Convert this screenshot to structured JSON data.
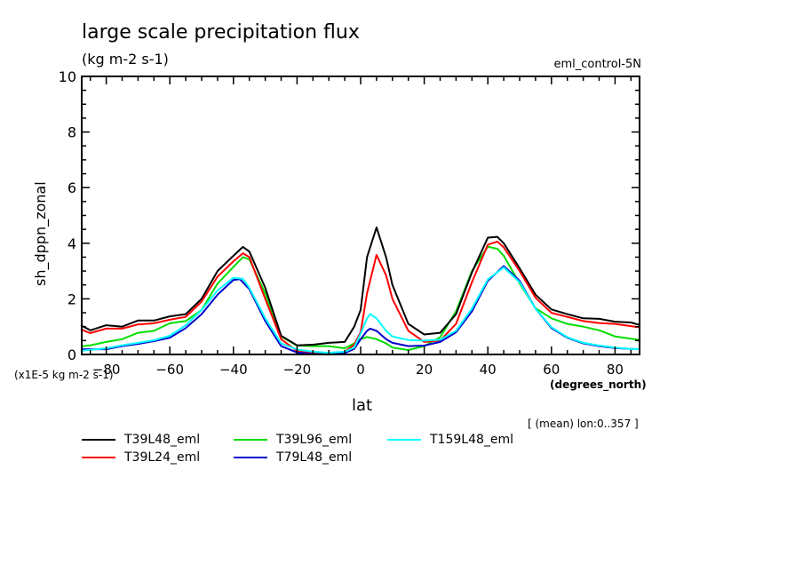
{
  "chart_data": {
    "type": "line",
    "title": "large scale precipitation flux",
    "subtitle": "(kg m-2 s-1)",
    "run_label": "eml_control-5N",
    "xlabel": "lat",
    "xunits": "(degrees_north)",
    "ylabel": "sh_dppn_zonal",
    "yscale_note": "(x1E-5 kg m-2 s-1)",
    "annotation": "[ (mean) lon:0..357 ]",
    "xlim": [
      -88,
      88
    ],
    "ylim": [
      0,
      10
    ],
    "xticks": [
      -80,
      -60,
      -40,
      -20,
      0,
      20,
      40,
      60,
      80
    ],
    "xtick_labels": [
      "-80",
      "-60",
      "-40",
      "-20",
      "0",
      "20",
      "40",
      "60",
      "80"
    ],
    "yticks": [
      0,
      2,
      4,
      6,
      8,
      10
    ],
    "ytick_labels": [
      "0",
      "2",
      "4",
      "6",
      "8",
      "10"
    ],
    "grid": false,
    "legend_position": "bottom",
    "series": [
      {
        "name": "T39L48_eml",
        "color": "#000000",
        "x": [
          -88,
          -85,
          -80,
          -75,
          -70,
          -65,
          -60,
          -55,
          -50,
          -45,
          -40,
          -37,
          -35,
          -30,
          -25,
          -20,
          -15,
          -10,
          -5,
          -2,
          0,
          2,
          5,
          8,
          10,
          15,
          20,
          25,
          30,
          35,
          40,
          43,
          45,
          50,
          55,
          60,
          65,
          70,
          75,
          80,
          85,
          88
        ],
        "y": [
          1.05,
          0.87,
          1.05,
          1.0,
          1.22,
          1.22,
          1.37,
          1.45,
          2.0,
          3.0,
          3.55,
          3.87,
          3.7,
          2.4,
          0.67,
          0.33,
          0.35,
          0.42,
          0.45,
          1.0,
          1.6,
          3.5,
          4.57,
          3.5,
          2.5,
          1.1,
          0.72,
          0.78,
          1.45,
          2.95,
          4.2,
          4.23,
          4.0,
          3.1,
          2.15,
          1.62,
          1.45,
          1.3,
          1.28,
          1.18,
          1.15,
          1.05
        ]
      },
      {
        "name": "T39L24_eml",
        "color": "#ff0000",
        "x": [
          -88,
          -85,
          -80,
          -75,
          -70,
          -65,
          -60,
          -55,
          -50,
          -45,
          -40,
          -37,
          -35,
          -30,
          -25,
          -20,
          -15,
          -10,
          -5,
          -2,
          0,
          2,
          5,
          8,
          10,
          15,
          20,
          25,
          30,
          35,
          40,
          43,
          45,
          50,
          55,
          60,
          65,
          70,
          75,
          80,
          85,
          88
        ],
        "y": [
          0.9,
          0.77,
          0.93,
          0.93,
          1.08,
          1.12,
          1.25,
          1.35,
          1.9,
          2.8,
          3.35,
          3.64,
          3.5,
          2.0,
          0.55,
          0.12,
          0.05,
          0.02,
          0.1,
          0.35,
          0.8,
          2.2,
          3.58,
          2.85,
          2.0,
          0.85,
          0.45,
          0.5,
          1.1,
          2.6,
          3.95,
          4.06,
          3.85,
          3.0,
          2.04,
          1.5,
          1.35,
          1.2,
          1.13,
          1.1,
          1.02,
          0.97
        ]
      },
      {
        "name": "T39L96_eml",
        "color": "#00dd00",
        "x": [
          -88,
          -85,
          -80,
          -75,
          -70,
          -65,
          -60,
          -55,
          -50,
          -45,
          -40,
          -37,
          -35,
          -30,
          -25,
          -20,
          -15,
          -10,
          -5,
          -2,
          0,
          2,
          5,
          8,
          10,
          15,
          20,
          25,
          30,
          35,
          40,
          43,
          45,
          50,
          55,
          60,
          65,
          70,
          75,
          80,
          85,
          88
        ],
        "y": [
          0.29,
          0.33,
          0.45,
          0.55,
          0.78,
          0.85,
          1.12,
          1.2,
          1.6,
          2.55,
          3.15,
          3.5,
          3.42,
          2.2,
          0.65,
          0.32,
          0.3,
          0.3,
          0.22,
          0.4,
          0.55,
          0.63,
          0.55,
          0.4,
          0.25,
          0.16,
          0.3,
          0.62,
          1.55,
          3.0,
          3.88,
          3.8,
          3.55,
          2.55,
          1.66,
          1.3,
          1.1,
          1.0,
          0.87,
          0.65,
          0.57,
          0.52
        ]
      },
      {
        "name": "T79L48_eml",
        "color": "#0000cc",
        "x": [
          -88,
          -85,
          -80,
          -75,
          -70,
          -65,
          -60,
          -55,
          -50,
          -45,
          -40,
          -38,
          -35,
          -30,
          -25,
          -20,
          -15,
          -10,
          -5,
          -2,
          0,
          2,
          3,
          5,
          8,
          10,
          15,
          20,
          25,
          30,
          35,
          40,
          45,
          50,
          55,
          60,
          65,
          70,
          75,
          80,
          85,
          88
        ],
        "y": [
          0.19,
          0.19,
          0.19,
          0.3,
          0.38,
          0.48,
          0.6,
          0.95,
          1.45,
          2.15,
          2.68,
          2.71,
          2.35,
          1.2,
          0.3,
          0.07,
          0.02,
          0.0,
          0.05,
          0.2,
          0.55,
          0.85,
          0.93,
          0.85,
          0.55,
          0.42,
          0.3,
          0.32,
          0.45,
          0.8,
          1.55,
          2.65,
          3.18,
          2.65,
          1.65,
          0.95,
          0.6,
          0.4,
          0.3,
          0.23,
          0.2,
          0.19
        ]
      },
      {
        "name": "T159L48_eml",
        "color": "#00ffff",
        "x": [
          -88,
          -85,
          -80,
          -75,
          -70,
          -65,
          -60,
          -55,
          -50,
          -45,
          -40,
          -37,
          -35,
          -30,
          -25,
          -20,
          -15,
          -10,
          -5,
          -2,
          0,
          2,
          3,
          5,
          8,
          10,
          15,
          20,
          25,
          30,
          35,
          40,
          45,
          50,
          55,
          60,
          65,
          70,
          75,
          80,
          85,
          88
        ],
        "y": [
          0.13,
          0.17,
          0.22,
          0.33,
          0.42,
          0.51,
          0.67,
          1.05,
          1.6,
          2.3,
          2.76,
          2.72,
          2.4,
          1.3,
          0.4,
          0.18,
          0.1,
          0.06,
          0.1,
          0.25,
          0.75,
          1.3,
          1.45,
          1.3,
          0.85,
          0.65,
          0.52,
          0.5,
          0.53,
          0.85,
          1.65,
          2.7,
          3.13,
          2.6,
          1.65,
          0.98,
          0.62,
          0.42,
          0.32,
          0.25,
          0.2,
          0.19
        ]
      }
    ],
    "legend": [
      {
        "label": "T39L48_eml",
        "color": "#000000"
      },
      {
        "label": "T39L96_eml",
        "color": "#00dd00"
      },
      {
        "label": "T159L48_eml",
        "color": "#00ffff"
      },
      {
        "label": "T39L24_eml",
        "color": "#ff0000"
      },
      {
        "label": "T79L48_eml",
        "color": "#0000cc"
      }
    ]
  }
}
